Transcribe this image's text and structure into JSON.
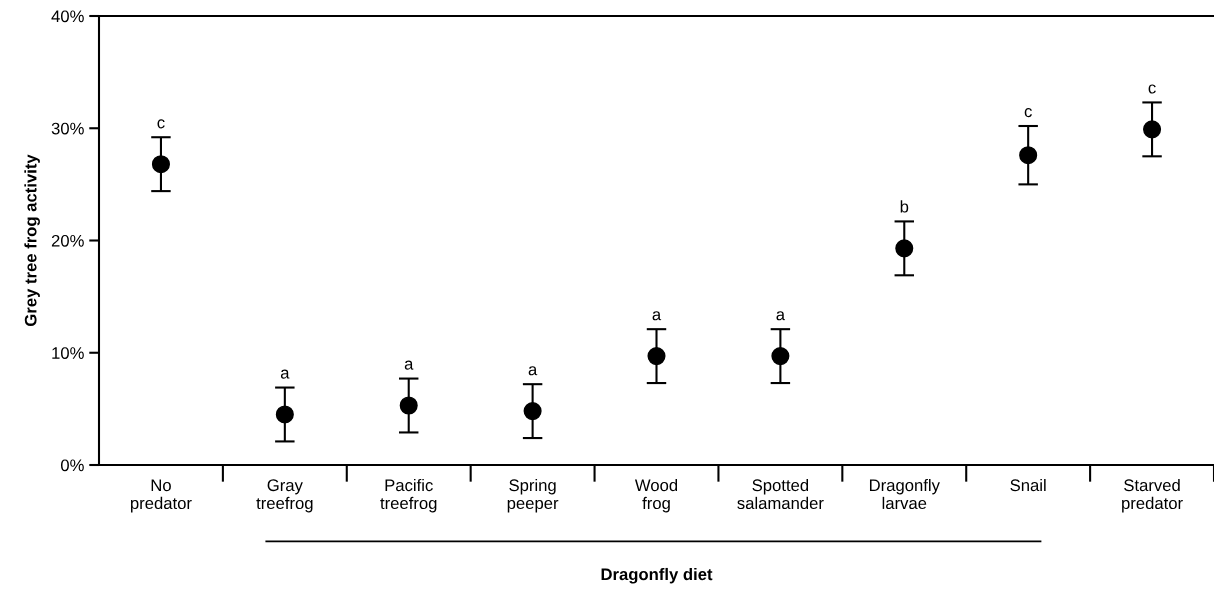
{
  "chart_data": {
    "type": "scatter",
    "xlabel": "Dragonfly diet",
    "ylabel": "Grey tree frog activity",
    "categories": [
      "No\npredator",
      "Gray\ntreefrog",
      "Pacific\ntreefrog",
      "Spring\npeeper",
      "Wood\nfrog",
      "Spotted\nsalamander",
      "Dragonfly\nlarvae",
      "Snail",
      "Starved\npredator"
    ],
    "series": [
      {
        "color": "#000000",
        "values": [
          26.8,
          4.5,
          5.3,
          4.8,
          9.7,
          9.7,
          19.3,
          27.6,
          29.9
        ],
        "errors": [
          2.4,
          2.4,
          2.4,
          2.4,
          2.4,
          2.4,
          2.4,
          2.6,
          2.4
        ]
      }
    ],
    "ylim": [
      0,
      40
    ],
    "yticks": [
      {
        "value": 0,
        "label": "0%"
      },
      {
        "value": 10,
        "label": "10%"
      },
      {
        "value": 20,
        "label": "20%"
      },
      {
        "value": 30,
        "label": "30%"
      },
      {
        "value": 40,
        "label": "40%"
      }
    ],
    "marker": "circle",
    "grid": false,
    "legend": false,
    "annotations": [
      {
        "text": "c",
        "x": "No\npredator",
        "y": 29.2
      },
      {
        "text": "a",
        "x": "Gray\ntreefrog",
        "y": 6.9
      },
      {
        "text": "a",
        "x": "Pacific\ntreefrog",
        "y": 7.7
      },
      {
        "text": "a",
        "x": "Spring\npeeper",
        "y": 7.2
      },
      {
        "text": "a",
        "x": "Wood\nfrog",
        "y": 12.1
      },
      {
        "text": "a",
        "x": "Spotted\nsalamander",
        "y": 12.1
      },
      {
        "text": "b",
        "x": "Dragonfly\nlarvae",
        "y": 21.7
      },
      {
        "text": "c",
        "x": "Snail",
        "y": 30.2
      },
      {
        "text": "c",
        "x": "Starved\npredator",
        "y": 32.3
      }
    ]
  }
}
